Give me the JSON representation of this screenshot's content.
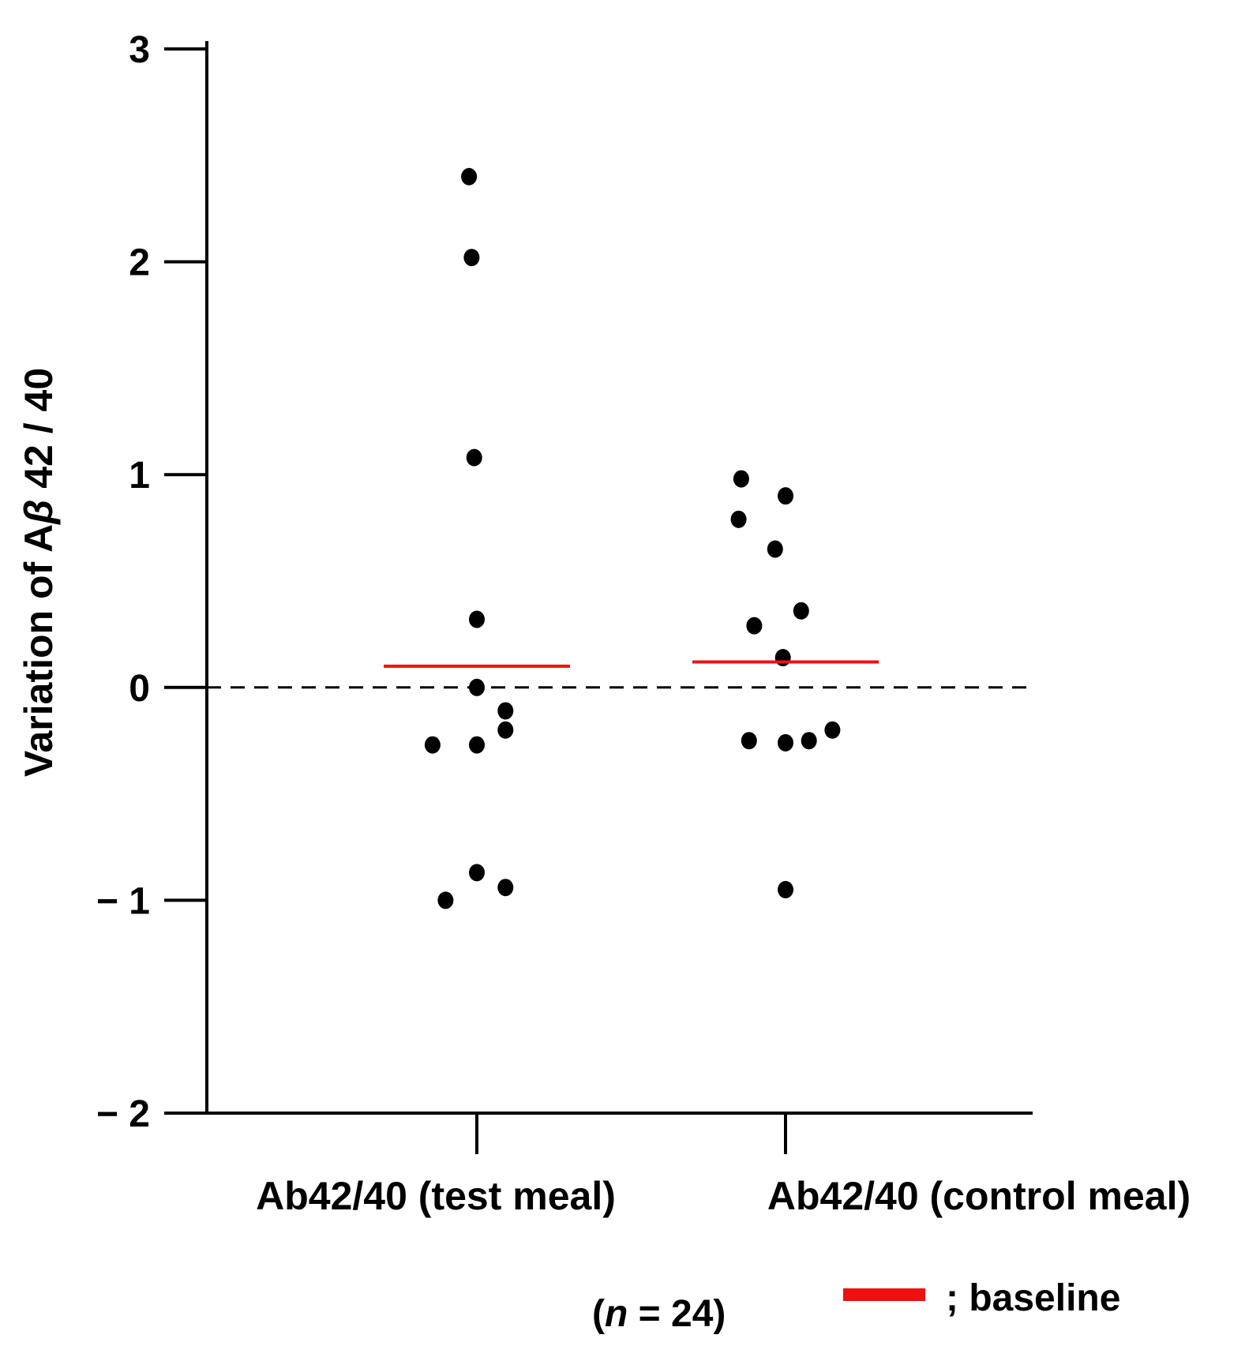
{
  "chart_data": {
    "type": "scatter",
    "title": "",
    "xlabel": "",
    "ylabel": {
      "prefix": "Variation of A",
      "greek": "β",
      "suffix": " 42 / 40"
    },
    "ylim": [
      -2,
      3
    ],
    "yticks": [
      {
        "value": 3,
        "label": "3"
      },
      {
        "value": 2,
        "label": "2"
      },
      {
        "value": 1,
        "label": "1"
      },
      {
        "value": 0,
        "label": "0"
      },
      {
        "value": -1,
        "label": "− 1"
      },
      {
        "value": -2,
        "label": "− 2"
      }
    ],
    "categories": [
      "Ab42/40 (test meal)",
      "Ab42/40 (control meal)"
    ],
    "reference_line": {
      "y": 0,
      "style": "dashed"
    },
    "series": [
      {
        "name": "Ab42/40 (test meal)",
        "points": [
          {
            "jitter": -0.03,
            "y": 2.4
          },
          {
            "jitter": -0.02,
            "y": 2.02
          },
          {
            "jitter": -0.01,
            "y": 1.08
          },
          {
            "jitter": 0.0,
            "y": 0.32
          },
          {
            "jitter": 0.0,
            "y": 0.0
          },
          {
            "jitter": 0.11,
            "y": -0.11
          },
          {
            "jitter": 0.11,
            "y": -0.2
          },
          {
            "jitter": -0.17,
            "y": -0.27
          },
          {
            "jitter": 0.0,
            "y": -0.27
          },
          {
            "jitter": 0.0,
            "y": -0.87
          },
          {
            "jitter": 0.11,
            "y": -0.94
          },
          {
            "jitter": -0.12,
            "y": -1.0
          }
        ],
        "baseline": 0.1
      },
      {
        "name": "Ab42/40 (control meal)",
        "points": [
          {
            "jitter": -0.17,
            "y": 0.98
          },
          {
            "jitter": 0.0,
            "y": 0.9
          },
          {
            "jitter": -0.18,
            "y": 0.79
          },
          {
            "jitter": -0.04,
            "y": 0.65
          },
          {
            "jitter": 0.06,
            "y": 0.36
          },
          {
            "jitter": -0.12,
            "y": 0.29
          },
          {
            "jitter": -0.01,
            "y": 0.14
          },
          {
            "jitter": -0.14,
            "y": -0.25
          },
          {
            "jitter": 0.0,
            "y": -0.26
          },
          {
            "jitter": 0.09,
            "y": -0.25
          },
          {
            "jitter": 0.18,
            "y": -0.2
          },
          {
            "jitter": 0.0,
            "y": -0.95
          }
        ],
        "baseline": 0.12
      }
    ],
    "legend": {
      "label": "; baseline",
      "color": "#ee1111",
      "placement": "bottom-right"
    },
    "annotation": {
      "open": "(",
      "italic": "n",
      "rest": " = 24)"
    }
  },
  "colors": {
    "point": "#000000",
    "baseline": "#ee1111",
    "axis": "#000000"
  }
}
